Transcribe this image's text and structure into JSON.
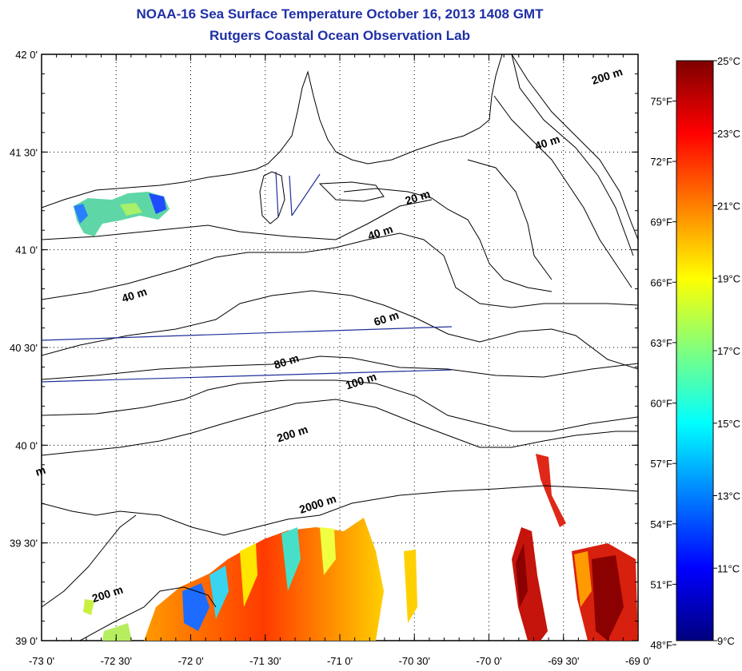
{
  "header": {
    "title": "NOAA-16 Sea Surface Temperature October 16, 2013 1408 GMT",
    "subtitle": "Rutgers Coastal Ocean Observation Lab"
  },
  "map": {
    "lon_range": [
      -73.0,
      -69.0
    ],
    "lat_range": [
      39.0,
      42.0
    ],
    "lon_ticks": [
      {
        "value": -73.0,
        "label": "-73 0'"
      },
      {
        "value": -72.5,
        "label": "-72 30'"
      },
      {
        "value": -72.0,
        "label": "-72 0'"
      },
      {
        "value": -71.5,
        "label": "-71 30'"
      },
      {
        "value": -71.0,
        "label": "-71 0'"
      },
      {
        "value": -70.5,
        "label": "-70 30'"
      },
      {
        "value": -70.0,
        "label": "-70 0'"
      },
      {
        "value": -69.5,
        "label": "-69 30'"
      },
      {
        "value": -69.0,
        "label": "-69 0'"
      }
    ],
    "lat_ticks": [
      {
        "value": 42.0,
        "label": "42 0'"
      },
      {
        "value": 41.5,
        "label": "41 30'"
      },
      {
        "value": 41.0,
        "label": "41 0'"
      },
      {
        "value": 40.5,
        "label": "40 30'"
      },
      {
        "value": 40.0,
        "label": "40 0'"
      },
      {
        "value": 39.5,
        "label": "39 30'"
      },
      {
        "value": 39.0,
        "label": "39 0'"
      }
    ],
    "grid": "dotted",
    "contour_labels": [
      {
        "text": "200 m",
        "lon": -69.2,
        "lat": 41.87
      },
      {
        "text": "40 m",
        "lon": -69.6,
        "lat": 41.53
      },
      {
        "text": "20 m",
        "lon": -70.47,
        "lat": 41.25
      },
      {
        "text": "40 m",
        "lon": -70.72,
        "lat": 41.07
      },
      {
        "text": "40 m",
        "lon": -72.37,
        "lat": 40.75
      },
      {
        "text": "60 m",
        "lon": -70.68,
        "lat": 40.63
      },
      {
        "text": "80 m",
        "lon": -71.35,
        "lat": 40.41
      },
      {
        "text": "100 m",
        "lon": -70.85,
        "lat": 40.31
      },
      {
        "text": "200 m",
        "lon": -71.31,
        "lat": 40.04
      },
      {
        "text": "2000 m",
        "lon": -71.14,
        "lat": 39.68
      },
      {
        "text": "200 m",
        "lon": -72.55,
        "lat": 39.22
      },
      {
        "text": "m",
        "lon": -73.0,
        "lat": 39.85
      }
    ]
  },
  "colorbar": {
    "celsius_ticks": [
      {
        "value": 25,
        "label": "25°C"
      },
      {
        "value": 23,
        "label": "23°C"
      },
      {
        "value": 21,
        "label": "21°C"
      },
      {
        "value": 19,
        "label": "19°C"
      },
      {
        "value": 17,
        "label": "17°C"
      },
      {
        "value": 15,
        "label": "15°C"
      },
      {
        "value": 13,
        "label": "13°C"
      },
      {
        "value": 11,
        "label": "11°C"
      },
      {
        "value": 9,
        "label": "9°C"
      }
    ],
    "fahrenheit_ticks": [
      {
        "value": 75,
        "label": "75°F"
      },
      {
        "value": 72,
        "label": "72°F"
      },
      {
        "value": 69,
        "label": "69°F"
      },
      {
        "value": 66,
        "label": "66°F"
      },
      {
        "value": 63,
        "label": "63°F"
      },
      {
        "value": 60,
        "label": "60°F"
      },
      {
        "value": 57,
        "label": "57°F"
      },
      {
        "value": 54,
        "label": "54°F"
      },
      {
        "value": 51,
        "label": "51°F"
      },
      {
        "value": 48,
        "label": "48°F"
      }
    ],
    "range_c": [
      9,
      25
    ],
    "colors": [
      "#00007f",
      "#0000ff",
      "#007fff",
      "#00ffff",
      "#7fff7f",
      "#ffff00",
      "#ff7f00",
      "#ff0000",
      "#7f0000"
    ]
  }
}
